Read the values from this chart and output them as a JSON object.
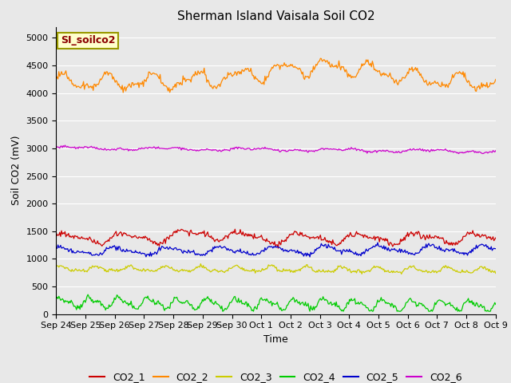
{
  "title": "Sherman Island Vaisala Soil CO2",
  "ylabel": "Soil CO2 (mV)",
  "xlabel": "Time",
  "legend_label": "SI_soilco2",
  "plot_bg_color": "#e8e8e8",
  "fig_bg_color": "#e8e8e8",
  "ylim": [
    0,
    5200
  ],
  "yticks": [
    0,
    500,
    1000,
    1500,
    2000,
    2500,
    3000,
    3500,
    4000,
    4500,
    5000
  ],
  "x_labels": [
    "Sep 24",
    "Sep 25",
    "Sep 26",
    "Sep 27",
    "Sep 28",
    "Sep 29",
    "Sep 30",
    "Oct 1",
    "Oct 2",
    "Oct 3",
    "Oct 4",
    "Oct 5",
    "Oct 6",
    "Oct 7",
    "Oct 8",
    "Oct 9"
  ],
  "colors": {
    "CO2_1": "#cc0000",
    "CO2_2": "#ff8800",
    "CO2_3": "#cccc00",
    "CO2_4": "#00cc00",
    "CO2_5": "#0000cc",
    "CO2_6": "#cc00cc"
  },
  "n_points": 500,
  "title_fontsize": 11,
  "axis_fontsize": 9,
  "tick_fontsize": 8,
  "legend_fontsize": 9
}
